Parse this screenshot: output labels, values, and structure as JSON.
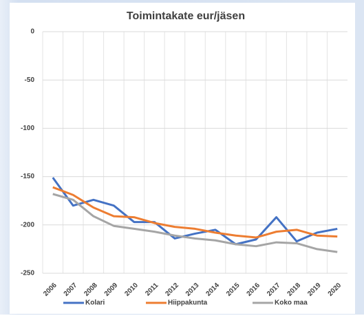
{
  "chart_data": {
    "type": "line",
    "title": "Toimintakate eur/jäsen",
    "categories": [
      "2006",
      "2007",
      "2008",
      "2009",
      "2010",
      "2011",
      "2012",
      "2013",
      "2014",
      "2015",
      "2016",
      "2017",
      "2018",
      "2019",
      "2020"
    ],
    "series": [
      {
        "name": "Kolari",
        "color": "#4472c4",
        "values": [
          -151,
          -180,
          -174,
          -180,
          -197,
          -197,
          -214,
          -209,
          -205,
          -220,
          -215,
          -192,
          -217,
          -208,
          -204
        ]
      },
      {
        "name": "Hiippakunta",
        "color": "#ed7d31",
        "values": [
          -161,
          -169,
          -182,
          -191,
          -192,
          -198,
          -202,
          -204,
          -208,
          -211,
          -213,
          -207,
          -205,
          -211,
          -212
        ]
      },
      {
        "name": "Koko maa",
        "color": "#a5a5a5",
        "values": [
          -168,
          -174,
          -191,
          -201,
          -204,
          -207,
          -211,
          -214,
          -216,
          -220,
          -222,
          -218,
          -219,
          -225,
          -228
        ]
      }
    ],
    "ylim": [
      -250,
      0
    ],
    "yticks": [
      -250,
      -200,
      -150,
      -100,
      -50,
      0
    ],
    "grid": true,
    "legend": "bottom"
  }
}
